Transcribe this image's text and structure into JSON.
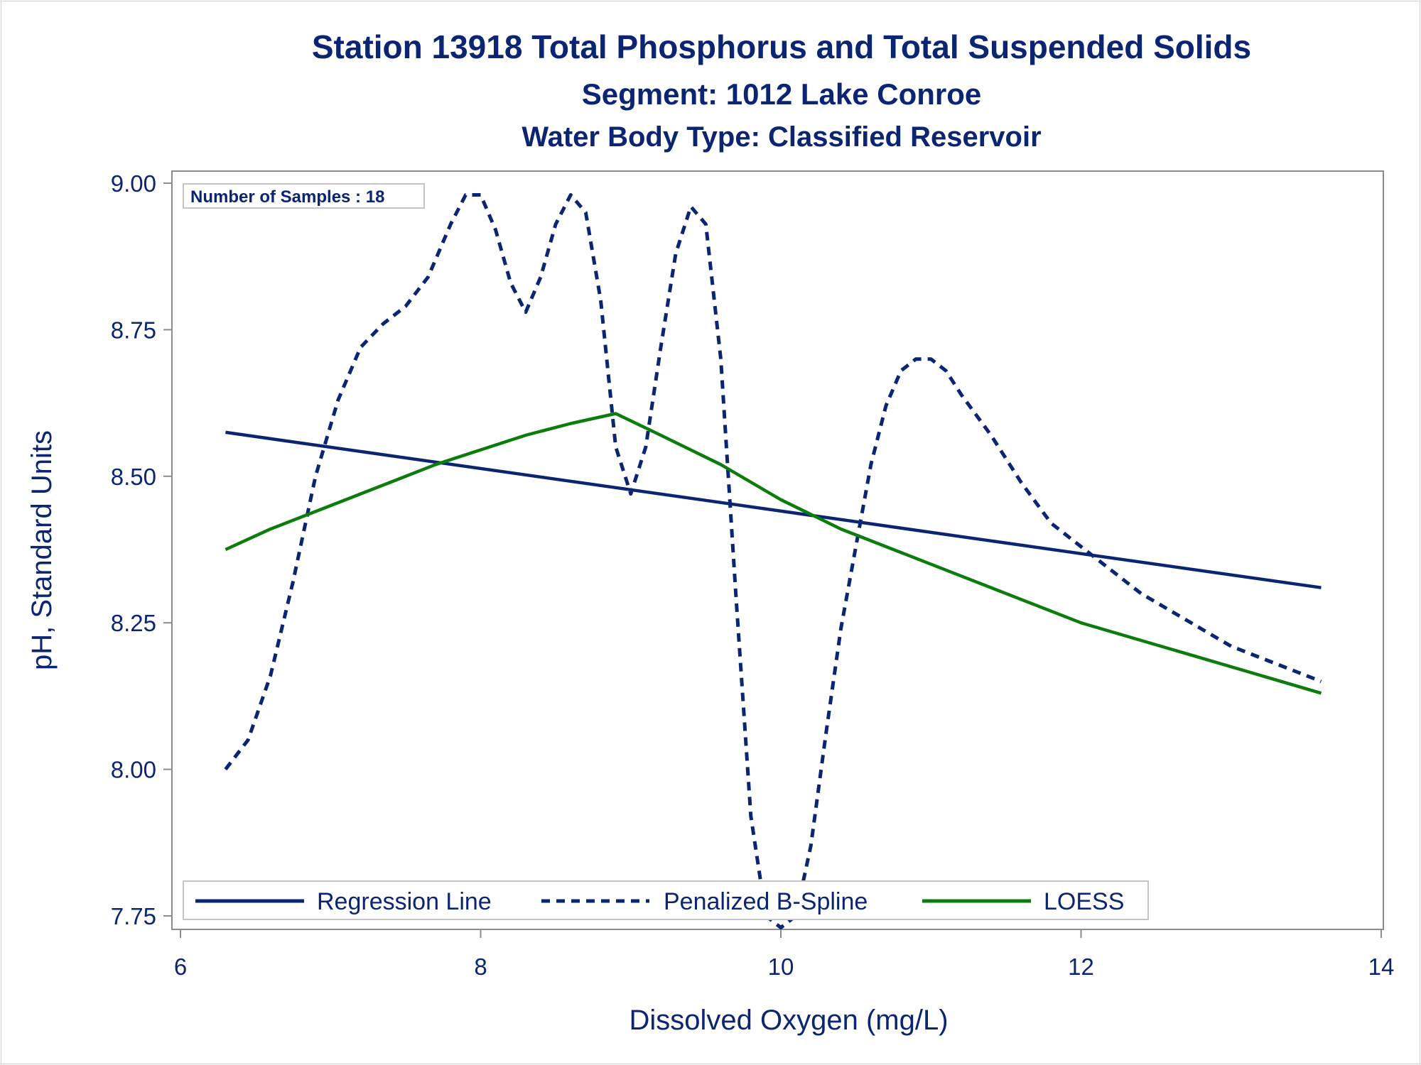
{
  "titles": {
    "line1": "Station 13918  Total Phosphorus and Total Suspended Solids",
    "line2": "Segment: 1012  Lake Conroe",
    "line3": "Water Body Type: Classified Reservoir"
  },
  "sample_box": {
    "text": "Number of Samples : 18"
  },
  "chart_data": {
    "type": "line",
    "xlabel": "Dissolved Oxygen (mg/L)",
    "ylabel": "pH, Standard Units",
    "xlim": [
      6,
      14
    ],
    "ylim": [
      7.75,
      9.0
    ],
    "xticks": [
      6,
      8,
      10,
      12,
      14
    ],
    "xtick_labels": [
      "6",
      "8",
      "10",
      "12",
      "14"
    ],
    "yticks": [
      7.75,
      8.0,
      8.25,
      8.5,
      8.75,
      9.0
    ],
    "ytick_labels": [
      "7.75",
      "8.00",
      "8.25",
      "8.50",
      "8.75",
      "9.00"
    ],
    "grid": false,
    "legend_position": "bottom-inside",
    "series": [
      {
        "name": "Regression Line",
        "style": "solid",
        "color": "#0b2573",
        "x": [
          6.3,
          13.6
        ],
        "y": [
          8.575,
          8.31
        ]
      },
      {
        "name": "Penalized B-Spline",
        "style": "dashed",
        "color": "#0b2573",
        "x": [
          6.3,
          6.45,
          6.6,
          6.75,
          6.9,
          7.05,
          7.2,
          7.35,
          7.5,
          7.65,
          7.8,
          7.9,
          8.0,
          8.1,
          8.2,
          8.3,
          8.4,
          8.5,
          8.6,
          8.7,
          8.8,
          8.9,
          9.0,
          9.1,
          9.2,
          9.3,
          9.4,
          9.5,
          9.6,
          9.7,
          9.8,
          9.9,
          10.0,
          10.1,
          10.2,
          10.3,
          10.4,
          10.5,
          10.6,
          10.7,
          10.8,
          10.9,
          11.0,
          11.1,
          11.2,
          11.4,
          11.6,
          11.8,
          12.0,
          12.2,
          12.4,
          12.6,
          12.8,
          13.0,
          13.2,
          13.4,
          13.6
        ],
        "y": [
          8.0,
          8.05,
          8.16,
          8.32,
          8.5,
          8.63,
          8.72,
          8.76,
          8.79,
          8.84,
          8.93,
          8.98,
          8.98,
          8.92,
          8.83,
          8.78,
          8.84,
          8.93,
          8.98,
          8.95,
          8.8,
          8.55,
          8.47,
          8.55,
          8.72,
          8.88,
          8.96,
          8.93,
          8.7,
          8.3,
          7.92,
          7.75,
          7.73,
          7.75,
          7.87,
          8.06,
          8.24,
          8.38,
          8.52,
          8.62,
          8.68,
          8.7,
          8.7,
          8.68,
          8.64,
          8.57,
          8.49,
          8.42,
          8.38,
          8.34,
          8.3,
          8.27,
          8.24,
          8.21,
          8.19,
          8.17,
          8.15
        ]
      },
      {
        "name": "LOESS",
        "style": "solid",
        "color": "#0c7d0c",
        "x": [
          6.3,
          6.6,
          7.0,
          7.4,
          7.7,
          8.0,
          8.3,
          8.6,
          8.9,
          9.2,
          9.6,
          10.0,
          10.4,
          10.8,
          11.2,
          11.6,
          12.0,
          12.4,
          12.8,
          13.2,
          13.6
        ],
        "y": [
          8.375,
          8.41,
          8.45,
          8.49,
          8.52,
          8.545,
          8.57,
          8.59,
          8.607,
          8.57,
          8.52,
          8.46,
          8.41,
          8.37,
          8.33,
          8.29,
          8.25,
          8.22,
          8.19,
          8.16,
          8.13
        ]
      }
    ]
  }
}
